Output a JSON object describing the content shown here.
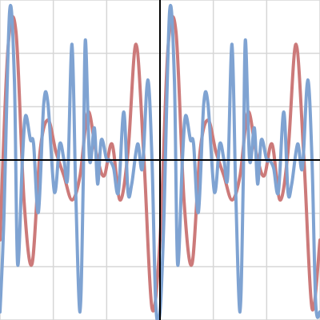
{
  "chart_data": {
    "type": "line",
    "xlim": [
      -3,
      3
    ],
    "ylim": [
      -3,
      3
    ],
    "xticks": [
      -3,
      -2,
      -1,
      0,
      1,
      2,
      3
    ],
    "yticks": [
      -3,
      -2,
      -1,
      0,
      1,
      2,
      3
    ],
    "grid": true,
    "axes_at_zero": true,
    "series": [
      {
        "color": "#cc7a7a",
        "x": [
          -3,
          -2.85,
          -2.7,
          -2.55,
          -2.4,
          -2.25,
          -2.1,
          -1.95,
          -1.8,
          -1.65,
          -1.5,
          -1.35,
          -1.2,
          -1.05,
          -0.9,
          -0.75,
          -0.6,
          -0.45,
          -0.3,
          -0.15,
          0,
          0.15,
          0.3,
          0.45,
          0.6,
          0.75,
          0.9,
          1.05,
          1.2,
          1.35,
          1.5,
          1.65,
          1.8,
          1.95,
          2.1,
          2.25,
          2.4,
          2.55,
          2.7,
          2.85,
          3
        ],
        "values": [
          -1.5,
          2.1,
          2.4,
          -0.75,
          -1.95,
          0.15,
          0.75,
          0.15,
          -0.3,
          -0.75,
          -0.3,
          0.9,
          0.15,
          -0.3,
          0.3,
          -0.75,
          0.15,
          2.17,
          0,
          -2.78,
          -1.5,
          2.1,
          2.4,
          -0.75,
          -1.95,
          0.15,
          0.75,
          0.15,
          -0.3,
          -0.75,
          -0.3,
          0.9,
          0.15,
          -0.3,
          0.3,
          -0.75,
          0.15,
          2.17,
          0,
          -2.78,
          -1.5
        ]
      },
      {
        "color": "#7fa3d2",
        "x": [
          -3,
          -2.93,
          -2.82,
          -2.73,
          -2.67,
          -2.58,
          -2.52,
          -2.43,
          -2.37,
          -2.28,
          -2.18,
          -2.1,
          -1.98,
          -1.88,
          -1.8,
          -1.73,
          -1.65,
          -1.58,
          -1.5,
          -1.44,
          -1.4,
          -1.32,
          -1.23,
          -1.17,
          -1.1,
          -1,
          -0.95,
          -0.87,
          -0.78,
          -0.68,
          -0.6,
          -0.53,
          -0.42,
          -0.33,
          -0.23,
          -0.15,
          -0.08,
          0,
          0.07,
          0.18,
          0.27,
          0.33,
          0.42,
          0.48,
          0.57,
          0.63,
          0.72,
          0.82,
          0.9,
          1.02,
          1.12,
          1.2,
          1.27,
          1.35,
          1.42,
          1.5,
          1.56,
          1.6,
          1.68,
          1.77,
          1.83,
          1.9,
          2,
          2.05,
          2.13,
          2.22,
          2.32,
          2.4,
          2.47,
          2.58,
          2.67,
          2.77,
          2.85,
          2.92,
          3
        ],
        "values": [
          -2.85,
          -1.2,
          2.78,
          1.5,
          -1.95,
          0,
          0.83,
          0.38,
          0.3,
          -0.98,
          1.05,
          1.05,
          -0.6,
          0.3,
          0,
          -0.3,
          2.17,
          -0.6,
          -2.85,
          -0.45,
          2.25,
          0,
          0.6,
          -0.45,
          0.38,
          0,
          0,
          -0.15,
          -0.6,
          0.9,
          -0.6,
          -0.45,
          0.3,
          -0.15,
          1.5,
          0,
          -2.7,
          -2.85,
          -1.2,
          2.78,
          1.5,
          -1.95,
          0,
          0.83,
          0.38,
          0.3,
          -0.98,
          1.05,
          1.05,
          -0.6,
          0.3,
          0,
          -0.3,
          2.17,
          -0.6,
          -2.85,
          -0.45,
          2.25,
          0,
          0.6,
          -0.45,
          0.38,
          0,
          0,
          -0.15,
          -0.6,
          0.9,
          -0.6,
          -0.45,
          0.3,
          -0.15,
          1.5,
          0,
          -2.7,
          -2.85
        ]
      }
    ]
  }
}
